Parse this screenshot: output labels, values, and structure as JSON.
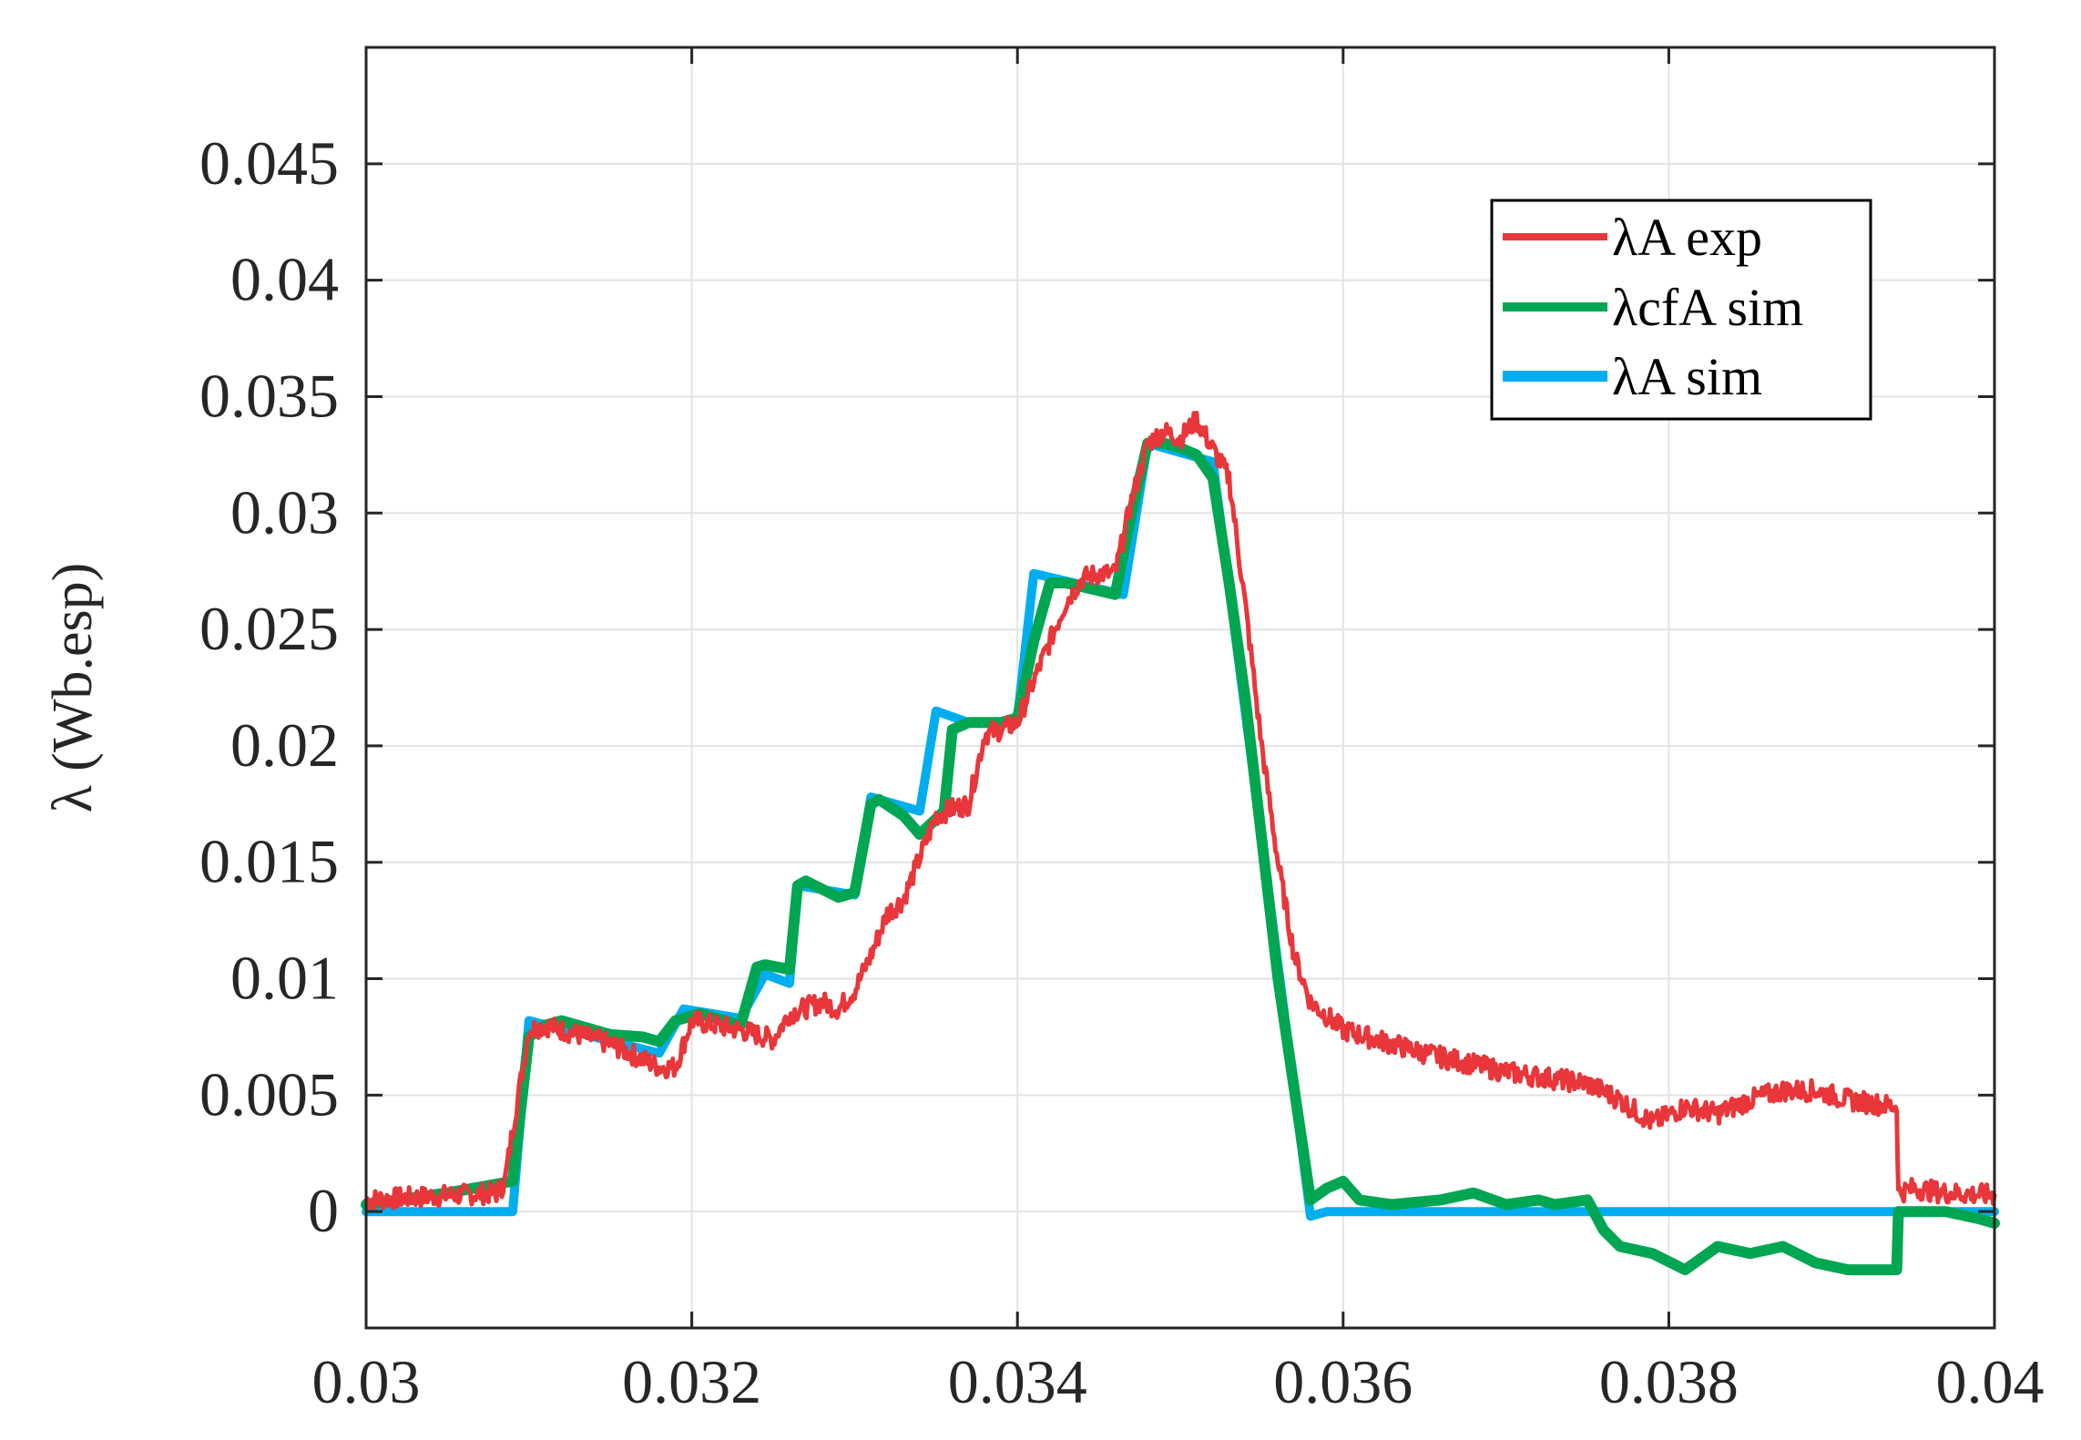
{
  "chart_data": {
    "type": "line",
    "title": "",
    "xlabel": "",
    "ylabel": "λ (Wb.esp)",
    "xlim": [
      0.03,
      0.04
    ],
    "ylim": [
      -0.005,
      0.05
    ],
    "xticks": [
      "0.03",
      "0.032",
      "0.034",
      "0.036",
      "0.038",
      "0.04"
    ],
    "yticks": [
      "0",
      "0.005",
      "0.01",
      "0.015",
      "0.02",
      "0.025",
      "0.03",
      "0.035",
      "0.04",
      "0.045"
    ],
    "grid": true,
    "legend_position": "top-right",
    "series": [
      {
        "name": "λA exp",
        "color": "#e8363a",
        "noisy": true,
        "x": [
          0.03,
          0.0308,
          0.03085,
          0.0309,
          0.031,
          0.0311,
          0.0315,
          0.0318,
          0.0319,
          0.032,
          0.0323,
          0.0325,
          0.0326,
          0.0328,
          0.0329,
          0.033,
          0.0331,
          0.0332,
          0.0333,
          0.0334,
          0.0335,
          0.0336,
          0.0337,
          0.0338,
          0.0339,
          0.034,
          0.0341,
          0.0342,
          0.0343,
          0.0344,
          0.0345,
          0.0346,
          0.0347,
          0.0348,
          0.0349,
          0.035,
          0.0351,
          0.0353,
          0.0354,
          0.0355,
          0.0356,
          0.0357,
          0.0358,
          0.036,
          0.0365,
          0.037,
          0.0375,
          0.0377,
          0.0379,
          0.0381,
          0.0383,
          0.0385,
          0.0387,
          0.0389,
          0.0391,
          0.0394,
          0.03941,
          0.0395,
          0.0397,
          0.04
        ],
        "y": [
          0.0005,
          0.0008,
          0.0012,
          0.0035,
          0.0078,
          0.008,
          0.0072,
          0.0062,
          0.0062,
          0.0082,
          0.0078,
          0.0074,
          0.0085,
          0.009,
          0.0087,
          0.0095,
          0.011,
          0.0128,
          0.0134,
          0.0152,
          0.017,
          0.0173,
          0.0175,
          0.0205,
          0.0207,
          0.021,
          0.0228,
          0.0245,
          0.0262,
          0.0272,
          0.0274,
          0.0274,
          0.0305,
          0.033,
          0.0335,
          0.0332,
          0.034,
          0.0315,
          0.026,
          0.02,
          0.015,
          0.011,
          0.009,
          0.0078,
          0.0068,
          0.006,
          0.0055,
          0.0048,
          0.0038,
          0.0045,
          0.0042,
          0.0048,
          0.0052,
          0.0052,
          0.0048,
          0.0045,
          0.0008,
          0.001,
          0.0008,
          0.0007
        ]
      },
      {
        "name": "λcfA sim",
        "color": "#00a651",
        "noisy": false,
        "x": [
          0.03,
          0.0305,
          0.0309,
          0.031,
          0.0311,
          0.0312,
          0.0315,
          0.0317,
          0.0318,
          0.0319,
          0.03205,
          0.0322,
          0.0323,
          0.0324,
          0.03245,
          0.0326,
          0.03265,
          0.0327,
          0.0329,
          0.033,
          0.0331,
          0.03315,
          0.0333,
          0.0334,
          0.03355,
          0.0336,
          0.0337,
          0.0339,
          0.034,
          0.0341,
          0.0342,
          0.0343,
          0.0346,
          0.0347,
          0.0348,
          0.0349,
          0.035,
          0.0351,
          0.0352,
          0.0353,
          0.0354,
          0.0355,
          0.0356,
          0.0358,
          0.0359,
          0.036,
          0.0361,
          0.0363,
          0.0366,
          0.0368,
          0.037,
          0.0372,
          0.0373,
          0.0375,
          0.0376,
          0.0377,
          0.0379,
          0.0381,
          0.0383,
          0.0385,
          0.0387,
          0.0389,
          0.0391,
          0.0393,
          0.0394,
          0.03941,
          0.0397,
          0.0399,
          0.04
        ],
        "y": [
          0.0003,
          0.0008,
          0.0013,
          0.0075,
          0.008,
          0.0082,
          0.0076,
          0.0075,
          0.0073,
          0.0082,
          0.0085,
          0.0082,
          0.008,
          0.0105,
          0.0106,
          0.0104,
          0.014,
          0.0142,
          0.0135,
          0.0137,
          0.0175,
          0.0177,
          0.017,
          0.0162,
          0.0172,
          0.0207,
          0.021,
          0.021,
          0.0212,
          0.0245,
          0.027,
          0.027,
          0.0265,
          0.03,
          0.033,
          0.033,
          0.0328,
          0.0325,
          0.0315,
          0.027,
          0.022,
          0.016,
          0.01,
          0.0005,
          0.001,
          0.0013,
          0.0005,
          0.0003,
          0.0005,
          0.0008,
          0.0003,
          0.0005,
          0.0003,
          0.0005,
          -0.0008,
          -0.0015,
          -0.0018,
          -0.0025,
          -0.0015,
          -0.0018,
          -0.0015,
          -0.0022,
          -0.0025,
          -0.0025,
          -0.0025,
          0.0,
          0.0,
          -0.0003,
          -0.0005
        ]
      },
      {
        "name": "λA sim",
        "color": "#00aeef",
        "noisy": false,
        "x": [
          0.03,
          0.0309,
          0.031,
          0.0318,
          0.03195,
          0.0323,
          0.03245,
          0.0326,
          0.03265,
          0.033,
          0.0331,
          0.0334,
          0.0335,
          0.0337,
          0.0339,
          0.034,
          0.0341,
          0.03465,
          0.0348,
          0.0352,
          0.0358,
          0.0359,
          0.0394,
          0.04
        ],
        "y": [
          0.0,
          0.0,
          0.0082,
          0.0068,
          0.0087,
          0.0083,
          0.0102,
          0.0098,
          0.014,
          0.0136,
          0.0178,
          0.0172,
          0.0215,
          0.021,
          0.021,
          0.0212,
          0.0274,
          0.0265,
          0.033,
          0.0322,
          -0.0002,
          0.0,
          0.0,
          0.0
        ]
      }
    ]
  }
}
